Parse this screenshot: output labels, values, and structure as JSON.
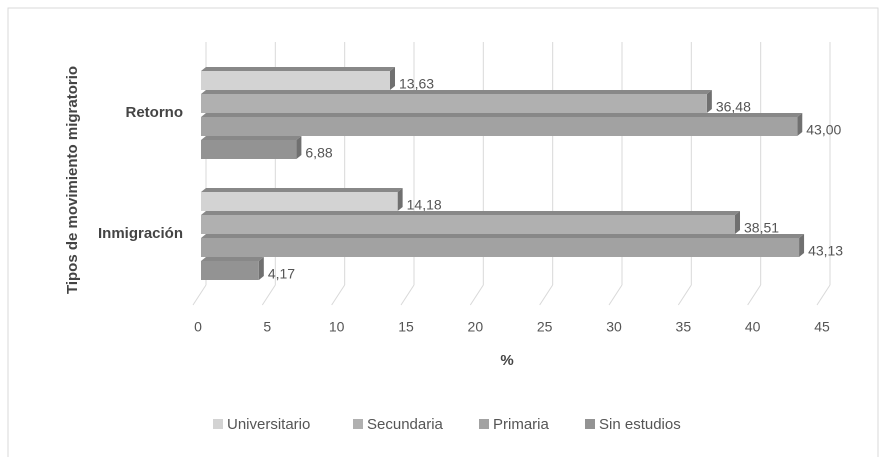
{
  "chart_data": {
    "type": "bar",
    "orientation": "horizontal",
    "x_label": "%",
    "y_label": "Tipos de movimiento migratorio",
    "categories": [
      "Inmigración",
      "Retorno"
    ],
    "series": [
      {
        "name": "Universitario",
        "color": "#d3d3d3",
        "values": [
          14.18,
          13.63
        ],
        "value_labels": [
          "14,18",
          "13,63"
        ]
      },
      {
        "name": "Secundaria",
        "color": "#b0b0b0",
        "values": [
          38.51,
          36.48
        ],
        "value_labels": [
          "38,51",
          "36,48"
        ]
      },
      {
        "name": "Primaria",
        "color": "#a2a2a2",
        "values": [
          43.13,
          43.0
        ],
        "value_labels": [
          "43,13",
          "43,00"
        ]
      },
      {
        "name": "Sin estudios",
        "color": "#939393",
        "values": [
          4.17,
          6.88
        ],
        "value_labels": [
          "4,17",
          "6,88"
        ]
      }
    ],
    "xlim": [
      0,
      45
    ],
    "xticks": [
      0,
      5,
      10,
      15,
      20,
      25,
      30,
      35,
      40,
      45
    ],
    "grid": true,
    "legend": "bottom"
  }
}
